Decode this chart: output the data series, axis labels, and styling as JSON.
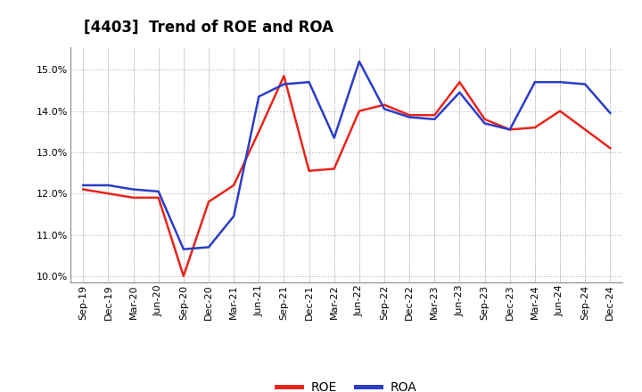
{
  "title": "[4403]  Trend of ROE and ROA",
  "x_labels": [
    "Sep-19",
    "Dec-19",
    "Mar-20",
    "Jun-20",
    "Sep-20",
    "Dec-20",
    "Mar-21",
    "Jun-21",
    "Sep-21",
    "Dec-21",
    "Mar-22",
    "Jun-22",
    "Sep-22",
    "Dec-22",
    "Mar-23",
    "Jun-23",
    "Sep-23",
    "Dec-23",
    "Mar-24",
    "Jun-24",
    "Sep-24",
    "Dec-24"
  ],
  "roe": [
    12.1,
    12.0,
    11.9,
    11.9,
    10.0,
    11.8,
    12.2,
    13.5,
    14.85,
    12.55,
    12.6,
    14.0,
    14.15,
    13.9,
    13.9,
    14.7,
    13.8,
    13.55,
    13.6,
    14.0,
    13.55,
    13.1
  ],
  "roa": [
    12.2,
    12.2,
    12.1,
    12.05,
    10.65,
    10.7,
    11.45,
    14.35,
    14.65,
    14.7,
    13.35,
    15.2,
    14.05,
    13.85,
    13.8,
    14.45,
    13.7,
    13.55,
    14.7,
    14.7,
    14.65,
    13.95
  ],
  "roe_color": "#e8251a",
  "roa_color": "#2a3dc8",
  "ylim_min": 9.85,
  "ylim_max": 15.55,
  "yticks": [
    10.0,
    11.0,
    12.0,
    13.0,
    14.0,
    15.0
  ],
  "background_color": "#ffffff",
  "plot_bg_color": "#ffffff",
  "grid_color": "#b0b0b0",
  "title_fontsize": 12,
  "axis_fontsize": 8,
  "legend_fontsize": 10,
  "line_width": 1.8
}
